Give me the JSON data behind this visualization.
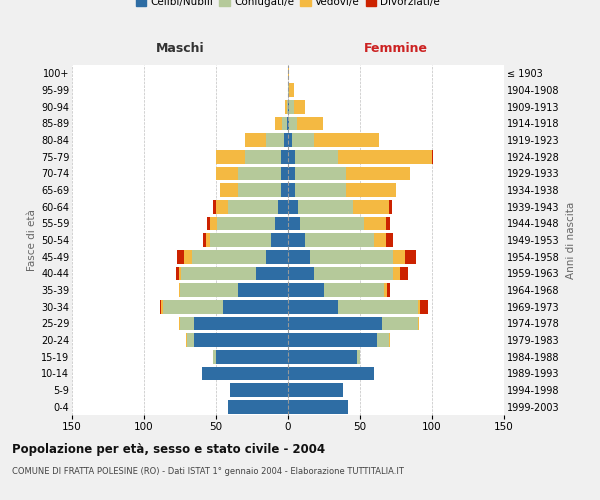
{
  "age_groups": [
    "0-4",
    "5-9",
    "10-14",
    "15-19",
    "20-24",
    "25-29",
    "30-34",
    "35-39",
    "40-44",
    "45-49",
    "50-54",
    "55-59",
    "60-64",
    "65-69",
    "70-74",
    "75-79",
    "80-84",
    "85-89",
    "90-94",
    "95-99",
    "100+"
  ],
  "birth_years": [
    "1999-2003",
    "1994-1998",
    "1989-1993",
    "1984-1988",
    "1979-1983",
    "1974-1978",
    "1969-1973",
    "1964-1968",
    "1959-1963",
    "1954-1958",
    "1949-1953",
    "1944-1948",
    "1939-1943",
    "1934-1938",
    "1929-1933",
    "1924-1928",
    "1919-1923",
    "1914-1918",
    "1909-1913",
    "1904-1908",
    "≤ 1903"
  ],
  "colors": {
    "celibe": "#2e6da4",
    "coniugato": "#b5c99a",
    "vedovo": "#f4b942",
    "divorziato": "#cc2200"
  },
  "maschi": {
    "celibe": [
      42,
      40,
      60,
      50,
      65,
      65,
      45,
      35,
      22,
      15,
      12,
      9,
      7,
      5,
      5,
      5,
      3,
      1,
      0,
      0,
      0
    ],
    "coniugato": [
      0,
      0,
      0,
      2,
      5,
      10,
      42,
      40,
      52,
      52,
      42,
      40,
      35,
      30,
      30,
      25,
      12,
      3,
      1,
      0,
      0
    ],
    "vedovo": [
      0,
      0,
      0,
      0,
      1,
      1,
      1,
      1,
      2,
      5,
      3,
      5,
      8,
      12,
      15,
      20,
      15,
      5,
      1,
      0,
      0
    ],
    "divorziato": [
      0,
      0,
      0,
      0,
      0,
      0,
      1,
      0,
      2,
      5,
      2,
      2,
      2,
      0,
      0,
      0,
      0,
      0,
      0,
      0,
      0
    ]
  },
  "femmine": {
    "celibe": [
      42,
      38,
      60,
      48,
      62,
      65,
      35,
      25,
      18,
      15,
      12,
      8,
      7,
      5,
      5,
      5,
      3,
      1,
      1,
      0,
      0
    ],
    "coniugato": [
      0,
      0,
      0,
      2,
      8,
      25,
      55,
      42,
      55,
      58,
      48,
      45,
      38,
      35,
      35,
      30,
      15,
      5,
      3,
      1,
      0
    ],
    "vedovo": [
      0,
      0,
      0,
      0,
      1,
      1,
      2,
      2,
      5,
      8,
      8,
      15,
      25,
      35,
      45,
      65,
      45,
      18,
      8,
      3,
      1
    ],
    "divorziato": [
      0,
      0,
      0,
      0,
      0,
      0,
      5,
      2,
      5,
      8,
      5,
      3,
      2,
      0,
      0,
      1,
      0,
      0,
      0,
      0,
      0
    ]
  },
  "title": "Popolazione per età, sesso e stato civile - 2004",
  "subtitle": "COMUNE DI FRATTA POLESINE (RO) - Dati ISTAT 1° gennaio 2004 - Elaborazione TUTTITALIA.IT",
  "xlabel_maschi": "Maschi",
  "xlabel_femmine": "Femmine",
  "ylabel_left": "Fasce di età",
  "ylabel_right": "Anni di nascita",
  "xlim": 150,
  "bg_color": "#f0f0f0",
  "plot_bg": "#ffffff",
  "legend_labels": [
    "Celibi/Nubili",
    "Coniugati/e",
    "Vedovi/e",
    "Divorziati/e"
  ]
}
